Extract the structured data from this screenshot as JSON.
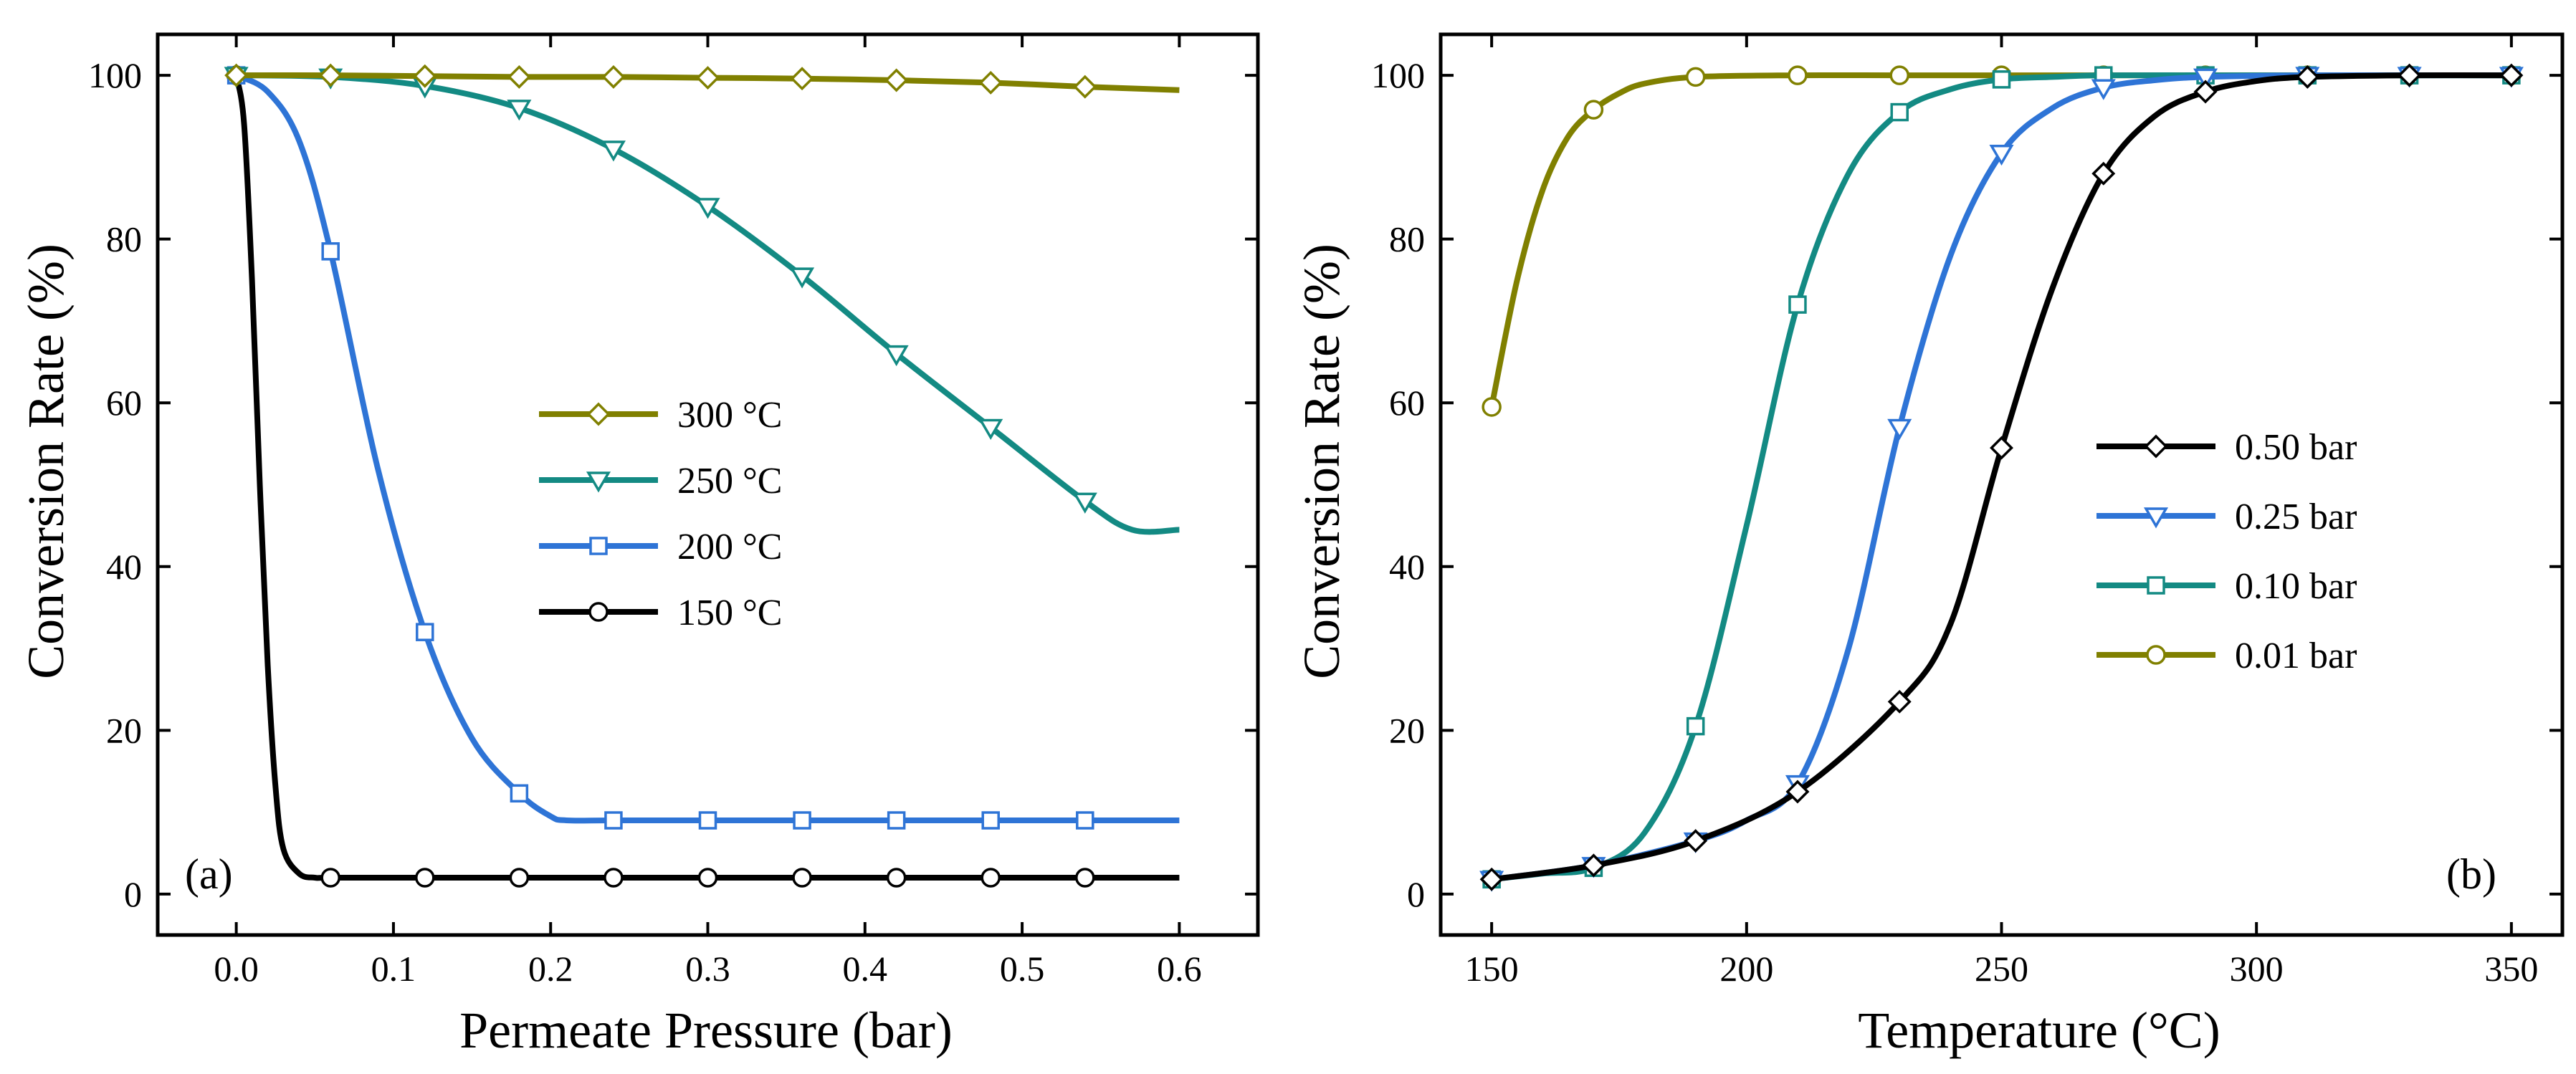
{
  "chart_data": [
    {
      "type": "line",
      "panel_label": "(a)",
      "xlabel": "Permeate Pressure (bar)",
      "ylabel": "Conversion Rate (%)",
      "xlim": [
        -0.05,
        0.65
      ],
      "ylim": [
        -5,
        105
      ],
      "xticks": [
        0.0,
        0.1,
        0.2,
        0.3,
        0.4,
        0.5,
        0.6
      ],
      "xtick_labels": [
        "0.0",
        "0.1",
        "0.2",
        "0.3",
        "0.4",
        "0.5",
        "0.6"
      ],
      "yticks": [
        0,
        20,
        40,
        60,
        80,
        100
      ],
      "ytick_labels": [
        "0",
        "20",
        "40",
        "60",
        "80",
        "100"
      ],
      "legend_position": "center-right",
      "series": [
        {
          "name": "300 °C",
          "color": "#808000",
          "marker": "diamond",
          "curve_x": [
            0.0,
            0.06,
            0.12,
            0.18,
            0.24,
            0.3,
            0.36,
            0.42,
            0.48,
            0.54,
            0.6
          ],
          "curve_y": [
            100.0,
            100.0,
            99.9,
            99.8,
            99.8,
            99.7,
            99.6,
            99.4,
            99.1,
            98.6,
            98.2
          ],
          "marker_x": [
            0.0,
            0.06,
            0.12,
            0.18,
            0.24,
            0.3,
            0.36,
            0.42,
            0.48,
            0.54
          ],
          "marker_y": [
            100.0,
            100.0,
            99.9,
            99.8,
            99.8,
            99.7,
            99.6,
            99.4,
            99.1,
            98.6
          ]
        },
        {
          "name": "250 °C",
          "color": "#138a83",
          "marker": "triangle-down",
          "curve_x": [
            0.0,
            0.06,
            0.12,
            0.18,
            0.24,
            0.3,
            0.36,
            0.42,
            0.48,
            0.54,
            0.57,
            0.6
          ],
          "curve_y": [
            100.0,
            99.8,
            98.7,
            96.0,
            91.0,
            84.0,
            75.5,
            66.0,
            57.0,
            48.0,
            44.5,
            44.5
          ],
          "marker_x": [
            0.0,
            0.06,
            0.12,
            0.18,
            0.24,
            0.3,
            0.36,
            0.42,
            0.48,
            0.54
          ],
          "marker_y": [
            100.0,
            99.8,
            98.7,
            96.0,
            91.0,
            84.0,
            75.5,
            66.0,
            57.0,
            48.0
          ]
        },
        {
          "name": "200 °C",
          "color": "#2e74d6",
          "marker": "square",
          "curve_x": [
            0.0,
            0.02,
            0.04,
            0.06,
            0.09,
            0.12,
            0.15,
            0.18,
            0.2,
            0.21,
            0.24,
            0.3,
            0.36,
            0.42,
            0.48,
            0.54,
            0.6
          ],
          "curve_y": [
            100.0,
            98.0,
            92.0,
            78.5,
            52.0,
            32.0,
            19.0,
            12.3,
            9.5,
            9.0,
            9.0,
            9.0,
            9.0,
            9.0,
            9.0,
            9.0,
            9.0
          ],
          "marker_x": [
            0.0,
            0.06,
            0.12,
            0.18,
            0.24,
            0.3,
            0.36,
            0.42,
            0.48,
            0.54
          ],
          "marker_y": [
            100.0,
            78.5,
            32.0,
            12.3,
            9.0,
            9.0,
            9.0,
            9.0,
            9.0,
            9.0
          ]
        },
        {
          "name": "150 °C",
          "color": "#000000",
          "marker": "circle",
          "curve_x": [
            0.0,
            0.005,
            0.01,
            0.015,
            0.02,
            0.025,
            0.03,
            0.04,
            0.05,
            0.06,
            0.12,
            0.18,
            0.24,
            0.3,
            0.36,
            0.42,
            0.48,
            0.54,
            0.6
          ],
          "curve_y": [
            100.0,
            94.0,
            75.0,
            50.0,
            28.0,
            13.0,
            5.5,
            2.5,
            2.0,
            2.0,
            2.0,
            2.0,
            2.0,
            2.0,
            2.0,
            2.0,
            2.0,
            2.0,
            2.0
          ],
          "marker_x": [
            0.0,
            0.06,
            0.12,
            0.18,
            0.24,
            0.3,
            0.36,
            0.42,
            0.48,
            0.54
          ],
          "marker_y": [
            100.0,
            2.0,
            2.0,
            2.0,
            2.0,
            2.0,
            2.0,
            2.0,
            2.0,
            2.0
          ]
        }
      ]
    },
    {
      "type": "line",
      "panel_label": "(b)",
      "xlabel": "Temperature (°C)",
      "ylabel": "Conversion Rate (%)",
      "xlim": [
        140,
        360
      ],
      "ylim": [
        -5,
        105
      ],
      "xticks": [
        150,
        200,
        250,
        300,
        350
      ],
      "xtick_labels": [
        "150",
        "200",
        "250",
        "300",
        "350"
      ],
      "yticks": [
        0,
        20,
        40,
        60,
        80,
        100
      ],
      "ytick_labels": [
        "0",
        "20",
        "40",
        "60",
        "80",
        "100"
      ],
      "legend_position": "center-right",
      "series": [
        {
          "name": "0.50 bar",
          "color": "#000000",
          "marker": "diamond",
          "curve_x": [
            150,
            170,
            190,
            210,
            230,
            240,
            250,
            260,
            270,
            280,
            290,
            300,
            310,
            330,
            350
          ],
          "curve_y": [
            1.8,
            3.5,
            6.5,
            12.5,
            23.5,
            33.0,
            54.5,
            74.0,
            88.0,
            95.0,
            98.0,
            99.3,
            99.8,
            100.0,
            100.0
          ],
          "marker_x": [
            150,
            170,
            190,
            210,
            230,
            250,
            270,
            290,
            310,
            330,
            350
          ],
          "marker_y": [
            1.8,
            3.5,
            6.5,
            12.5,
            23.5,
            54.5,
            88.0,
            98.0,
            99.8,
            100.0,
            100.0
          ]
        },
        {
          "name": "0.25 bar",
          "color": "#2e74d6",
          "marker": "triangle-down",
          "curve_x": [
            150,
            170,
            190,
            200,
            210,
            220,
            230,
            240,
            250,
            260,
            270,
            280,
            290,
            310,
            330,
            350
          ],
          "curve_y": [
            1.8,
            3.5,
            6.5,
            9.0,
            13.5,
            30.0,
            57.0,
            78.0,
            90.5,
            96.0,
            98.5,
            99.4,
            99.8,
            100.0,
            100.0,
            100.0
          ],
          "marker_x": [
            150,
            170,
            190,
            210,
            230,
            250,
            270,
            290,
            310,
            330,
            350
          ],
          "marker_y": [
            1.8,
            3.5,
            6.5,
            13.5,
            57.0,
            90.5,
            98.5,
            99.8,
            100.0,
            100.0,
            100.0
          ]
        },
        {
          "name": "0.10 bar",
          "color": "#138a83",
          "marker": "square",
          "curve_x": [
            150,
            160,
            170,
            180,
            190,
            200,
            210,
            220,
            230,
            240,
            250,
            260,
            270,
            290,
            310,
            330,
            350
          ],
          "curve_y": [
            1.8,
            2.5,
            3.2,
            7.5,
            20.5,
            45.0,
            72.0,
            88.0,
            95.5,
            98.3,
            99.5,
            99.8,
            100.0,
            100.0,
            100.0,
            100.0,
            100.0
          ],
          "marker_x": [
            150,
            170,
            190,
            210,
            230,
            250,
            270,
            290,
            310,
            330,
            350
          ],
          "marker_y": [
            1.8,
            3.2,
            20.5,
            72.0,
            95.5,
            99.5,
            100.0,
            100.0,
            100.0,
            100.0,
            100.0
          ]
        },
        {
          "name": "0.01 bar",
          "color": "#808000",
          "marker": "circle",
          "curve_x": [
            150,
            155,
            160,
            165,
            170,
            175,
            180,
            190,
            210,
            230,
            250,
            270,
            290,
            310,
            330,
            350
          ],
          "curve_y": [
            59.5,
            75.0,
            86.0,
            92.5,
            95.8,
            97.8,
            99.0,
            99.8,
            100.0,
            100.0,
            100.0,
            100.0,
            100.0,
            100.0,
            100.0,
            100.0
          ],
          "marker_x": [
            150,
            170,
            190,
            210,
            230,
            250,
            270,
            290,
            310,
            330,
            350
          ],
          "marker_y": [
            59.5,
            95.8,
            99.8,
            100.0,
            100.0,
            100.0,
            100.0,
            100.0,
            100.0,
            100.0,
            100.0
          ]
        }
      ]
    }
  ]
}
